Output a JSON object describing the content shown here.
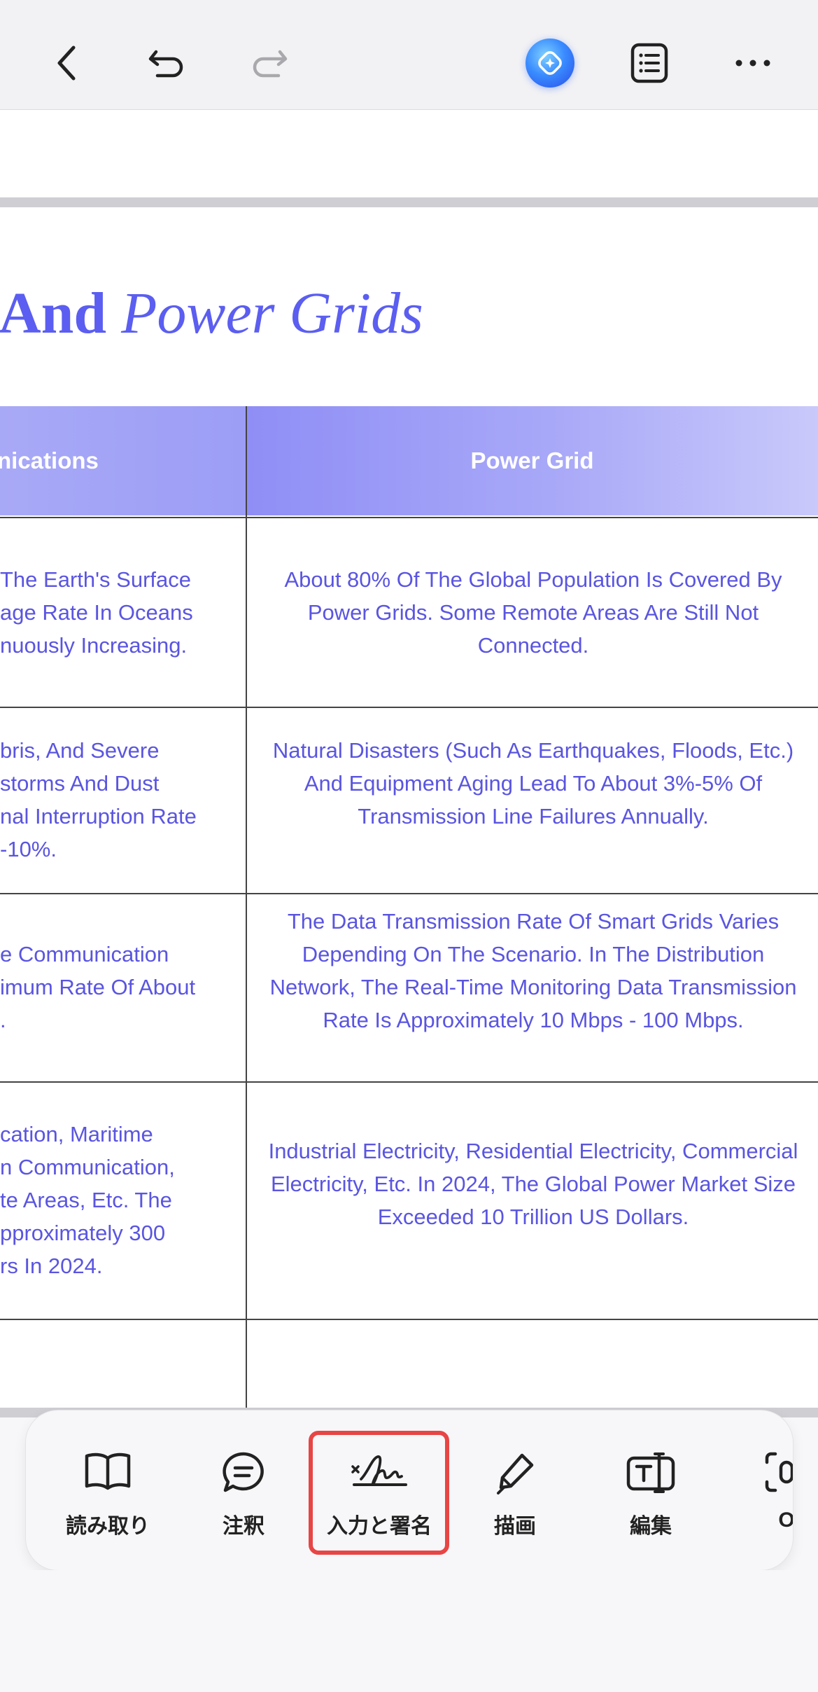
{
  "toolbar": {
    "back_icon": "chevron-left-icon",
    "undo_icon": "undo-icon",
    "redo_icon": "redo-icon",
    "ai_icon": "ai-assistant-icon",
    "outline_icon": "list-icon",
    "more_icon": "more-icon"
  },
  "document": {
    "title_bold": "And",
    "title_italic": "Power Grids",
    "table": {
      "headers": [
        "nications",
        "Power Grid"
      ],
      "rows": [
        {
          "left": "The Earth's Surface\nage Rate In Oceans\nnuously Increasing.",
          "right": "About 80% Of The Global Population Is Covered By Power Grids. Some Remote Areas Are Still Not Connected."
        },
        {
          "left": "bris, And Severe\nstorms And Dust\nnal Interruption Rate\n-10%.",
          "right": "Natural Disasters (Such As Earthquakes, Floods, Etc.) And Equipment Aging Lead To About 3%-5% Of Transmission Line Failures Annually."
        },
        {
          "left": "e Communication\nimum Rate Of About\n.",
          "right": "The Data Transmission Rate Of Smart Grids Varies Depending On The Scenario. In The Distribution Network, The Real-Time Monitoring Data Transmission Rate Is Approximately 10 Mbps - 100 Mbps."
        },
        {
          "left": "cation, Maritime\nn Communication,\nte Areas, Etc. The\npproximately 300\nrs In 2024.",
          "right": "Industrial Electricity, Residential Electricity, Commercial Electricity, Etc. In 2024, The Global Power Market Size Exceeded 10 Trillion US Dollars."
        }
      ]
    }
  },
  "dock": {
    "items": [
      {
        "label": "読み取り",
        "icon": "book-icon"
      },
      {
        "label": "注釈",
        "icon": "comment-icon"
      },
      {
        "label": "入力と署名",
        "icon": "signature-icon",
        "selected": true
      },
      {
        "label": "描画",
        "icon": "pen-icon"
      },
      {
        "label": "編集",
        "icon": "text-edit-icon"
      },
      {
        "label": "O",
        "icon": "ocr-icon"
      }
    ],
    "highlight_color": "#e84545"
  },
  "colors": {
    "accent": "#5b5ef0",
    "cell_text": "#5a55e0",
    "header_bg": "#9c9df6"
  }
}
